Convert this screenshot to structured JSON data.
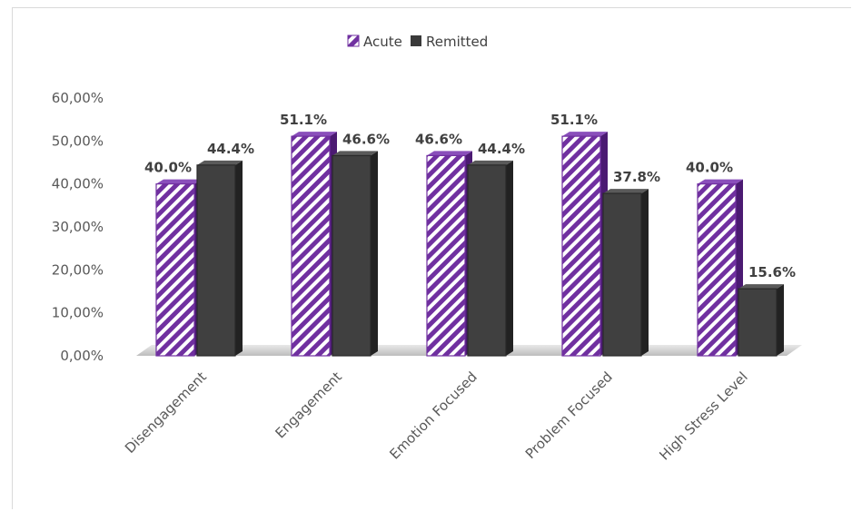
{
  "chart_data": {
    "type": "bar",
    "title": "",
    "xlabel": "",
    "ylabel": "",
    "ylim": [
      0,
      0.6
    ],
    "y_ticks": [
      "0,00%",
      "10,00%",
      "20,00%",
      "30,00%",
      "40,00%",
      "50,00%",
      "60,00%"
    ],
    "categories": [
      "Disengagement",
      "Engagement",
      "Emotion Focused",
      "Problem Focused",
      "High Stress Level"
    ],
    "series": [
      {
        "name": "Acute",
        "values": [
          0.4,
          0.511,
          0.466,
          0.511,
          0.4
        ],
        "labels": [
          "40.0%",
          "51.1%",
          "46.6%",
          "51.1%",
          "40.0%"
        ],
        "color": "#7030a0",
        "pattern": "diagonal-stripes"
      },
      {
        "name": "Remitted",
        "values": [
          0.444,
          0.466,
          0.444,
          0.378,
          0.156
        ],
        "labels": [
          "44.4%",
          "46.6%",
          "44.4%",
          "37.8%",
          "15.6%"
        ],
        "color": "#3a3a3a"
      }
    ],
    "legend_position": "top-center",
    "grid": false
  }
}
